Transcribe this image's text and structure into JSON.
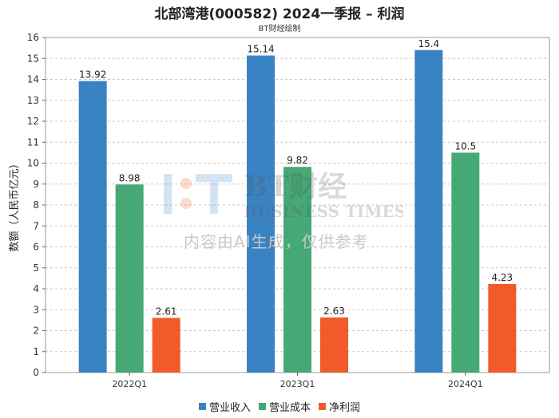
{
  "chart_data": {
    "type": "bar",
    "title": "北部湾港(000582) 2024一季报 – 利润",
    "subtitle": "BT财经绘制",
    "ylabel": "数额（人民币亿元）",
    "xlabel": "",
    "ylim": [
      0,
      16
    ],
    "yticks": [
      0,
      1,
      2,
      3,
      4,
      5,
      6,
      7,
      8,
      9,
      10,
      11,
      12,
      13,
      14,
      15,
      16
    ],
    "grid": true,
    "legend_position": "bottom",
    "categories": [
      "2022Q1",
      "2023Q1",
      "2024Q1"
    ],
    "series": [
      {
        "name": "营业收入",
        "color": "#3a83c3",
        "values": [
          13.92,
          15.14,
          15.4
        ],
        "labels": [
          "13.92",
          "15.14",
          "15.4"
        ]
      },
      {
        "name": "营业成本",
        "color": "#45a875",
        "values": [
          8.98,
          9.82,
          10.5
        ],
        "labels": [
          "8.98",
          "9.82",
          "10.5"
        ]
      },
      {
        "name": "净利润",
        "color": "#f15a2b",
        "values": [
          2.61,
          2.63,
          4.23
        ],
        "labels": [
          "2.61",
          "2.63",
          "4.23"
        ]
      }
    ]
  },
  "watermark": {
    "brand": "BT财经",
    "brand_en": "BUSINESS TIMES",
    "notice": "内容由AI生成，仅供参考"
  }
}
